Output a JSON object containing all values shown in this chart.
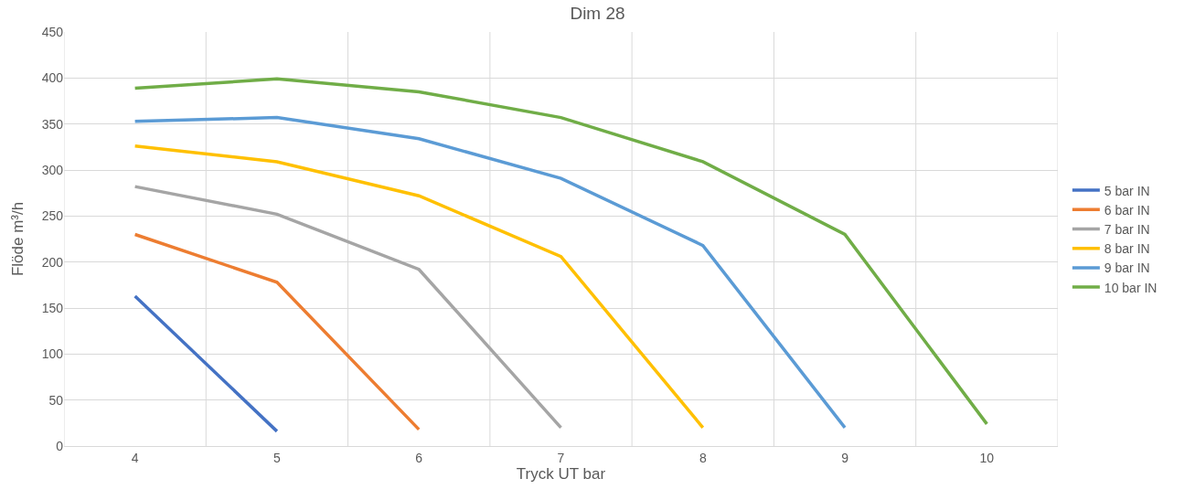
{
  "chart_data": {
    "type": "line",
    "title": "Dim 28",
    "xlabel": "Tryck UT bar",
    "ylabel": "Flöde m³/h",
    "categories": [
      "4",
      "5",
      "6",
      "7",
      "8",
      "9",
      "10"
    ],
    "series": [
      {
        "name": "5 bar IN",
        "color": "#4472c4",
        "values": [
          163,
          16,
          null,
          null,
          null,
          null,
          null
        ]
      },
      {
        "name": "6 bar IN",
        "color": "#ed7d31",
        "values": [
          230,
          178,
          18,
          null,
          null,
          null,
          null
        ]
      },
      {
        "name": "7 bar IN",
        "color": "#a5a5a5",
        "values": [
          282,
          252,
          192,
          20,
          null,
          null,
          null
        ]
      },
      {
        "name": "8 bar IN",
        "color": "#ffc000",
        "values": [
          326,
          309,
          272,
          206,
          20,
          null,
          null
        ]
      },
      {
        "name": "9 bar IN",
        "color": "#5b9bd5",
        "values": [
          353,
          357,
          334,
          291,
          218,
          20,
          null
        ]
      },
      {
        "name": "10 bar IN",
        "color": "#70ad47",
        "values": [
          389,
          399,
          385,
          357,
          309,
          230,
          24
        ]
      }
    ],
    "ylim": [
      0,
      450
    ],
    "yticks": [
      0,
      50,
      100,
      150,
      200,
      250,
      300,
      350,
      400,
      450
    ],
    "grid": true,
    "legend": "right",
    "marker": "none",
    "line_style": "solid"
  }
}
